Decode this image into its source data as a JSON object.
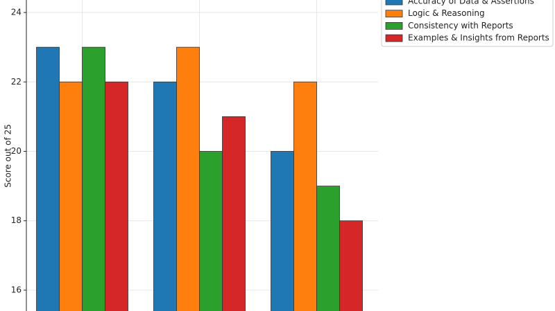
{
  "chart_data": {
    "type": "bar",
    "y_label": "Score out of 25",
    "categories": [
      null,
      null,
      null
    ],
    "series": [
      {
        "name": "Accuracy of Data & Assertions",
        "color": "#1f77b4",
        "values": [
          23,
          22,
          20
        ]
      },
      {
        "name": "Logic & Reasoning",
        "color": "#ff7f0e",
        "values": [
          22,
          23,
          22
        ]
      },
      {
        "name": "Consistency with Reports",
        "color": "#2ca02c",
        "values": [
          23,
          20,
          19
        ]
      },
      {
        "name": "Examples & Insights from Reports",
        "color": "#d62728",
        "values": [
          22,
          21,
          18
        ]
      }
    ],
    "ylim": [
      15.4,
      24.36
    ],
    "yticks": [
      16,
      18,
      20,
      22,
      24
    ],
    "grid": true,
    "legend": "upper right"
  }
}
